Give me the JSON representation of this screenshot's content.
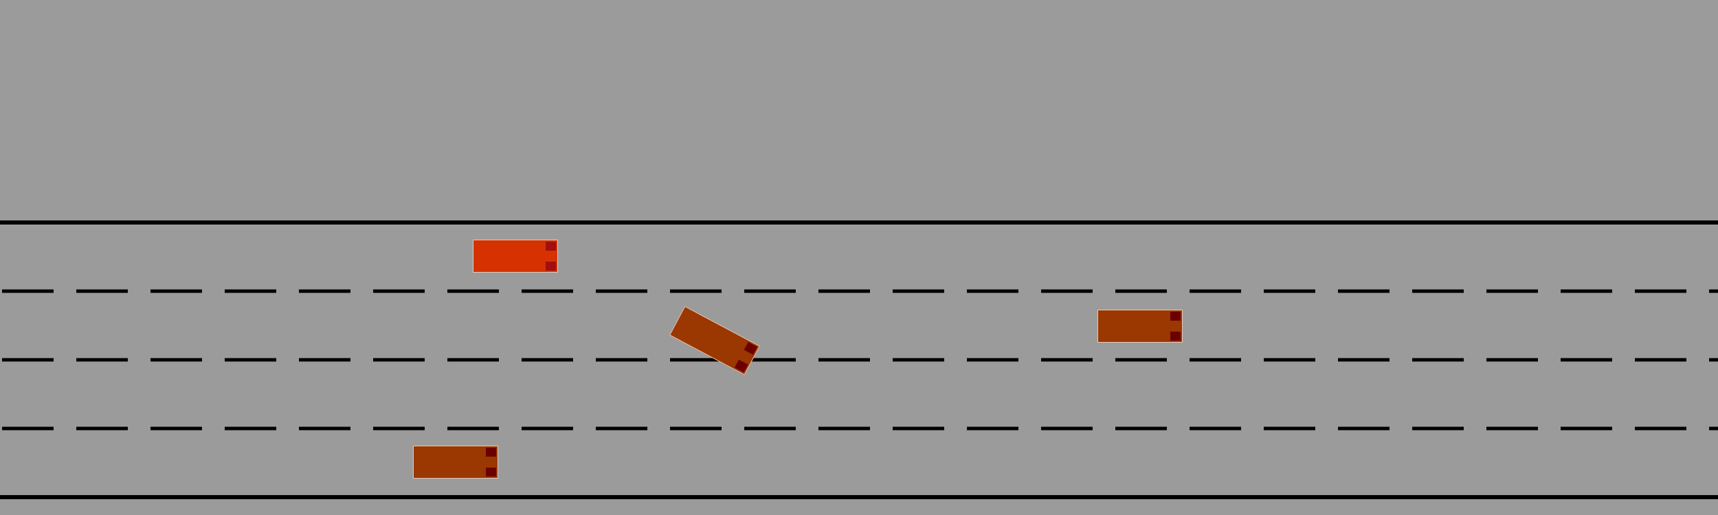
{
  "scene": {
    "background_color": "#9b9b9b",
    "line_color": "#000000",
    "lane_count": 4
  },
  "vehicles": [
    {
      "id": "ego",
      "role": "ego-vehicle",
      "body_color": "#d63100",
      "light_color": "#a10f0f",
      "heading_deg": 0
    },
    {
      "id": "vehicle-1",
      "role": "other-vehicle",
      "body_color": "#9b3700",
      "light_color": "#6b0000",
      "heading_deg": 28
    },
    {
      "id": "vehicle-2",
      "role": "other-vehicle",
      "body_color": "#9b3700",
      "light_color": "#6b0000",
      "heading_deg": 0
    },
    {
      "id": "vehicle-3",
      "role": "other-vehicle",
      "body_color": "#9b3700",
      "light_color": "#6b0000",
      "heading_deg": 0
    }
  ]
}
